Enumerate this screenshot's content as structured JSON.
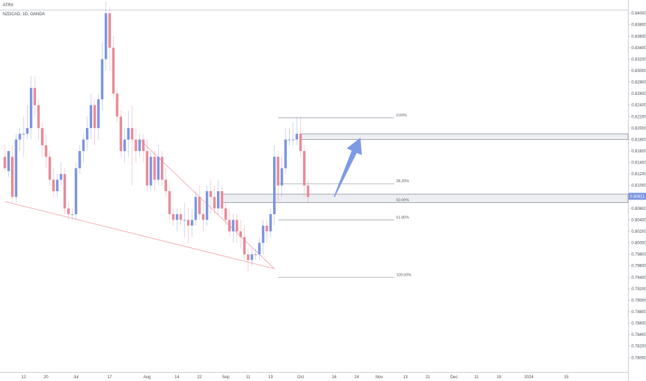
{
  "header": {
    "watermark": "ATRX",
    "symbol": "NZDCAD, 1D, OANDA"
  },
  "colors": {
    "bull": "#7b94e0",
    "bear": "#e98996",
    "wedge_line": "#f3a3ad",
    "fib_line": "#9a9ea8",
    "zone_border": "#8a8f99",
    "zone_fill": "#eceef2",
    "arrow": "#7e9ae6",
    "current_price_tag": "#7b94e0",
    "axis_text": "#4a4f5c"
  },
  "chart_data": {
    "type": "candlestick",
    "title": "NZDCAD, 1D, OANDA",
    "ylim": [
      0.7775,
      0.8405
    ],
    "y_ticks": [
      "0.78000",
      "0.78200",
      "0.78400",
      "0.78600",
      "0.78800",
      "0.79000",
      "0.79200",
      "0.79400",
      "0.79600",
      "0.79800",
      "0.80000",
      "0.80200",
      "0.80400",
      "0.80600",
      "0.80800",
      "0.81000",
      "0.81200",
      "0.81400",
      "0.81600",
      "0.81800",
      "0.82000",
      "0.82200",
      "0.82400",
      "0.82600",
      "0.82800",
      "0.83000",
      "0.83200",
      "0.83400",
      "0.83600",
      "0.83800",
      "0.84000"
    ],
    "x_ticks": [
      {
        "label": "12",
        "bar": 5
      },
      {
        "label": "20",
        "bar": 11
      },
      {
        "label": "Jul",
        "bar": 19
      },
      {
        "label": "17",
        "bar": 28
      },
      {
        "label": "Aug",
        "bar": 38
      },
      {
        "label": "14",
        "bar": 46
      },
      {
        "label": "22",
        "bar": 52
      },
      {
        "label": "Sep",
        "bar": 59
      },
      {
        "label": "11",
        "bar": 65
      },
      {
        "label": "19",
        "bar": 71
      },
      {
        "label": "Oct",
        "bar": 79
      },
      {
        "label": "16",
        "bar": 88
      },
      {
        "label": "24",
        "bar": 94
      },
      {
        "label": "Nov",
        "bar": 100
      },
      {
        "label": "13",
        "bar": 107
      },
      {
        "label": "21",
        "bar": 113
      },
      {
        "label": "Dec",
        "bar": 120
      },
      {
        "label": "11",
        "bar": 126
      },
      {
        "label": "19",
        "bar": 132
      },
      {
        "label": "2024",
        "bar": 140
      },
      {
        "label": "15",
        "bar": 150
      }
    ],
    "current_price": "0.80811",
    "candles": [
      [
        0.815,
        0.817,
        0.813,
        0.8125
      ],
      [
        0.8125,
        0.816,
        0.816,
        0.8115
      ],
      [
        0.815,
        0.817,
        0.808,
        0.807
      ],
      [
        0.808,
        0.819,
        0.818,
        0.807
      ],
      [
        0.818,
        0.82,
        0.819,
        0.816
      ],
      [
        0.819,
        0.822,
        0.819,
        0.815
      ],
      [
        0.819,
        0.824,
        0.82,
        0.818
      ],
      [
        0.82,
        0.829,
        0.827,
        0.818
      ],
      [
        0.827,
        0.829,
        0.824,
        0.822
      ],
      [
        0.824,
        0.825,
        0.82,
        0.818
      ],
      [
        0.82,
        0.821,
        0.817,
        0.815
      ],
      [
        0.817,
        0.819,
        0.815,
        0.813
      ],
      [
        0.815,
        0.816,
        0.811,
        0.81
      ],
      [
        0.811,
        0.813,
        0.809,
        0.808
      ],
      [
        0.809,
        0.812,
        0.811,
        0.808
      ],
      [
        0.811,
        0.814,
        0.812,
        0.81
      ],
      [
        0.812,
        0.813,
        0.806,
        0.805
      ],
      [
        0.806,
        0.807,
        0.805,
        0.804
      ],
      [
        0.805,
        0.806,
        0.805,
        0.804
      ],
      [
        0.805,
        0.814,
        0.813,
        0.804
      ],
      [
        0.813,
        0.817,
        0.816,
        0.812
      ],
      [
        0.816,
        0.819,
        0.818,
        0.814
      ],
      [
        0.818,
        0.822,
        0.82,
        0.816
      ],
      [
        0.82,
        0.826,
        0.824,
        0.818
      ],
      [
        0.824,
        0.825,
        0.82,
        0.817
      ],
      [
        0.82,
        0.826,
        0.825,
        0.818
      ],
      [
        0.825,
        0.835,
        0.832,
        0.823
      ],
      [
        0.832,
        0.842,
        0.84,
        0.83
      ],
      [
        0.84,
        0.841,
        0.834,
        0.83
      ],
      [
        0.834,
        0.836,
        0.826,
        0.825
      ],
      [
        0.826,
        0.827,
        0.822,
        0.821
      ],
      [
        0.822,
        0.823,
        0.816,
        0.815
      ],
      [
        0.816,
        0.82,
        0.818,
        0.814
      ],
      [
        0.818,
        0.823,
        0.82,
        0.815
      ],
      [
        0.82,
        0.824,
        0.818,
        0.81
      ],
      [
        0.818,
        0.82,
        0.816,
        0.814
      ],
      [
        0.816,
        0.819,
        0.818,
        0.815
      ],
      [
        0.818,
        0.819,
        0.816,
        0.814
      ],
      [
        0.816,
        0.818,
        0.81,
        0.809
      ],
      [
        0.81,
        0.816,
        0.815,
        0.809
      ],
      [
        0.815,
        0.816,
        0.811,
        0.809
      ],
      [
        0.811,
        0.817,
        0.815,
        0.81
      ],
      [
        0.815,
        0.816,
        0.811,
        0.81
      ],
      [
        0.811,
        0.813,
        0.809,
        0.808
      ],
      [
        0.809,
        0.81,
        0.805,
        0.804
      ],
      [
        0.805,
        0.806,
        0.804,
        0.803
      ],
      [
        0.804,
        0.806,
        0.805,
        0.802
      ],
      [
        0.805,
        0.806,
        0.804,
        0.803
      ],
      [
        0.804,
        0.807,
        0.804,
        0.801
      ],
      [
        0.804,
        0.806,
        0.803,
        0.8
      ],
      [
        0.803,
        0.806,
        0.804,
        0.801
      ],
      [
        0.804,
        0.809,
        0.808,
        0.803
      ],
      [
        0.808,
        0.81,
        0.805,
        0.804
      ],
      [
        0.805,
        0.807,
        0.804,
        0.802
      ],
      [
        0.804,
        0.81,
        0.809,
        0.803
      ],
      [
        0.809,
        0.811,
        0.808,
        0.805
      ],
      [
        0.808,
        0.81,
        0.806,
        0.805
      ],
      [
        0.806,
        0.811,
        0.809,
        0.805
      ],
      [
        0.809,
        0.81,
        0.806,
        0.805
      ],
      [
        0.806,
        0.807,
        0.804,
        0.803
      ],
      [
        0.804,
        0.806,
        0.802,
        0.801
      ],
      [
        0.802,
        0.805,
        0.804,
        0.8
      ],
      [
        0.804,
        0.805,
        0.802,
        0.8
      ],
      [
        0.802,
        0.804,
        0.801,
        0.799
      ],
      [
        0.801,
        0.803,
        0.798,
        0.797
      ],
      [
        0.798,
        0.799,
        0.797,
        0.795
      ],
      [
        0.797,
        0.799,
        0.798,
        0.796
      ],
      [
        0.798,
        0.799,
        0.798,
        0.797
      ],
      [
        0.798,
        0.801,
        0.8,
        0.797
      ],
      [
        0.8,
        0.804,
        0.803,
        0.798
      ],
      [
        0.803,
        0.804,
        0.802,
        0.8
      ],
      [
        0.802,
        0.806,
        0.805,
        0.801
      ],
      [
        0.805,
        0.817,
        0.815,
        0.803
      ],
      [
        0.815,
        0.816,
        0.81,
        0.807
      ],
      [
        0.81,
        0.815,
        0.813,
        0.808
      ],
      [
        0.813,
        0.82,
        0.818,
        0.812
      ],
      [
        0.818,
        0.82,
        0.818,
        0.817
      ],
      [
        0.818,
        0.821,
        0.818,
        0.817
      ],
      [
        0.818,
        0.822,
        0.819,
        0.817
      ],
      [
        0.819,
        0.822,
        0.816,
        0.815
      ],
      [
        0.816,
        0.817,
        0.81,
        0.808
      ],
      [
        0.81,
        0.811,
        0.808,
        0.807
      ]
    ],
    "wedge_lines": [
      {
        "from": [
          0,
          0.8072
        ],
        "to": [
          72,
          0.7955
        ]
      },
      {
        "from": [
          36,
          0.818
        ],
        "to": [
          72,
          0.7955
        ]
      }
    ],
    "fib_levels": [
      {
        "label": "0.00%",
        "price": 0.8218
      },
      {
        "label": "38.20%",
        "price": 0.8103
      },
      {
        "label": "50.00%",
        "price": 0.807
      },
      {
        "label": "61.80%",
        "price": 0.804
      },
      {
        "label": "100.00%",
        "price": 0.794
      }
    ],
    "zones": [
      {
        "from_bar": 58,
        "price_top": 0.8085,
        "price_bottom": 0.807
      },
      {
        "from_bar": 79,
        "price_top": 0.819,
        "price_bottom": 0.818
      }
    ],
    "arrow": {
      "from": [
        88,
        0.808
      ],
      "to": [
        95,
        0.8183
      ]
    }
  }
}
